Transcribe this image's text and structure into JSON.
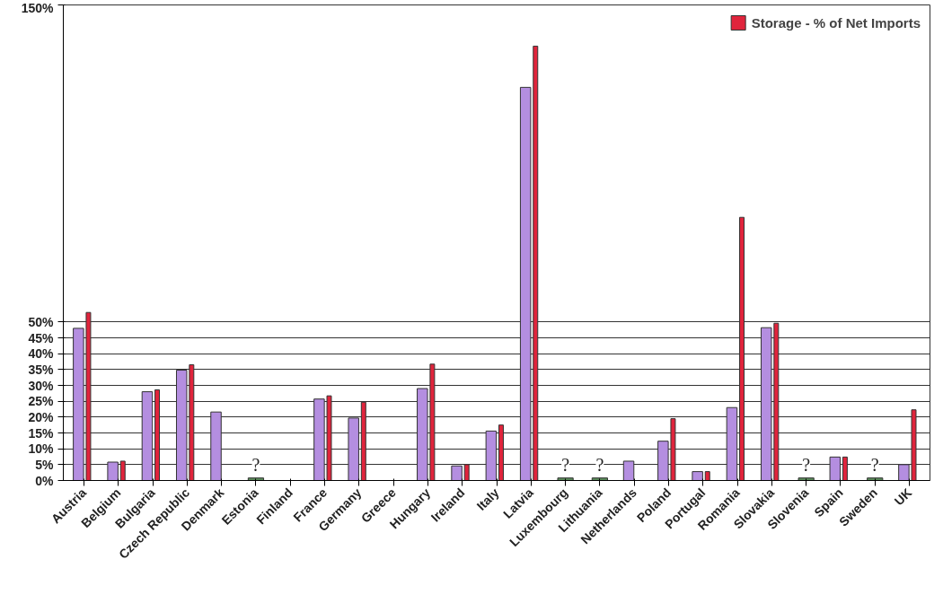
{
  "chart_data": {
    "type": "bar",
    "categories": [
      "Austria",
      "Belgium",
      "Bulgaria",
      "Czech Republic",
      "Denmark",
      "Estonia",
      "Finland",
      "France",
      "Germany",
      "Greece",
      "Hungary",
      "Ireland",
      "Italy",
      "Latvia",
      "Luxembourg",
      "Lithuania",
      "Netherlands",
      "Poland",
      "Portugal",
      "Romania",
      "Slovakia",
      "Slovenia",
      "Spain",
      "Sweden",
      "UK"
    ],
    "series": [
      {
        "color": "#b48ee0",
        "values": [
          48,
          5.8,
          28,
          34.8,
          21.6,
          null,
          null,
          25.7,
          19.7,
          null,
          29,
          4.6,
          15.6,
          124,
          null,
          null,
          6.1,
          12.4,
          2.8,
          23,
          48.2,
          null,
          7.4,
          null,
          5.0
        ]
      },
      {
        "name": "Storage - % of Net Imports",
        "color": "#e0243c",
        "values": [
          53,
          6.1,
          28.6,
          36.5,
          null,
          null,
          null,
          26.7,
          24.7,
          null,
          36.7,
          5.0,
          17.5,
          137,
          null,
          null,
          null,
          19.5,
          2.8,
          83,
          49.6,
          null,
          7.4,
          null,
          22.3
        ]
      },
      {
        "color": "#5a8a5a",
        "values": [
          null,
          null,
          null,
          null,
          null,
          0.8,
          null,
          null,
          null,
          null,
          null,
          null,
          null,
          null,
          0.8,
          0.8,
          null,
          null,
          null,
          null,
          null,
          0.8,
          null,
          0.8,
          null
        ],
        "value_labels": [
          null,
          null,
          null,
          null,
          null,
          "?",
          null,
          null,
          null,
          null,
          null,
          null,
          null,
          null,
          "?",
          "?",
          null,
          null,
          null,
          null,
          null,
          "?",
          null,
          "?",
          null
        ]
      }
    ],
    "ylim": [
      0,
      150
    ],
    "yticks": [
      {
        "value": 0,
        "label": "0%"
      },
      {
        "value": 5,
        "label": "5%"
      },
      {
        "value": 10,
        "label": "10%"
      },
      {
        "value": 15,
        "label": "15%"
      },
      {
        "value": 20,
        "label": "20%"
      },
      {
        "value": 25,
        "label": "25%"
      },
      {
        "value": 30,
        "label": "30%"
      },
      {
        "value": 35,
        "label": "35%"
      },
      {
        "value": 40,
        "label": "40%"
      },
      {
        "value": 45,
        "label": "45%"
      },
      {
        "value": 50,
        "label": "50%"
      },
      {
        "value": 150,
        "label": "150%"
      }
    ],
    "grid": "y",
    "legend": "top right"
  }
}
